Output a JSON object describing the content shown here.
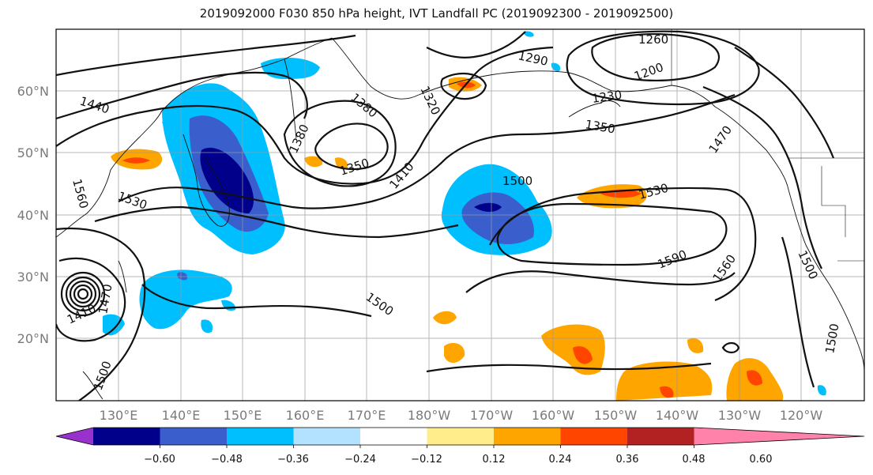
{
  "title": "2019092000 F030 850 hPa height, IVT Landfall PC (2019092300 - 2019092500)",
  "latitude_labels": [
    "60°N",
    "50°N",
    "40°N",
    "30°N",
    "20°N"
  ],
  "longitude_labels": [
    "130°E",
    "140°E",
    "150°E",
    "160°E",
    "170°E",
    "180°W",
    "170°W",
    "160°W",
    "150°W",
    "140°W",
    "130°W",
    "120°W"
  ],
  "contour_labels": [
    "1260",
    "1290",
    "1200",
    "1230",
    "1320",
    "1380",
    "1350",
    "1380",
    "1350",
    "1410",
    "1440",
    "1470",
    "1500",
    "1530",
    "1530",
    "1560",
    "1590",
    "1560",
    "1500",
    "1500",
    "1500",
    "1470",
    "1410",
    "1500"
  ],
  "colorbar": {
    "ticks": [
      "−0.60",
      "−0.48",
      "−0.36",
      "−0.24",
      "−0.12",
      "0.12",
      "0.24",
      "0.36",
      "0.48",
      "0.60"
    ],
    "colors": [
      "#9932cc",
      "#00008b",
      "#3a5fcd",
      "#00bfff",
      "#b2e2ff",
      "#ffffff",
      "#ffec8b",
      "#ffa500",
      "#ff4500",
      "#b22222",
      "#ff82ab"
    ]
  }
}
